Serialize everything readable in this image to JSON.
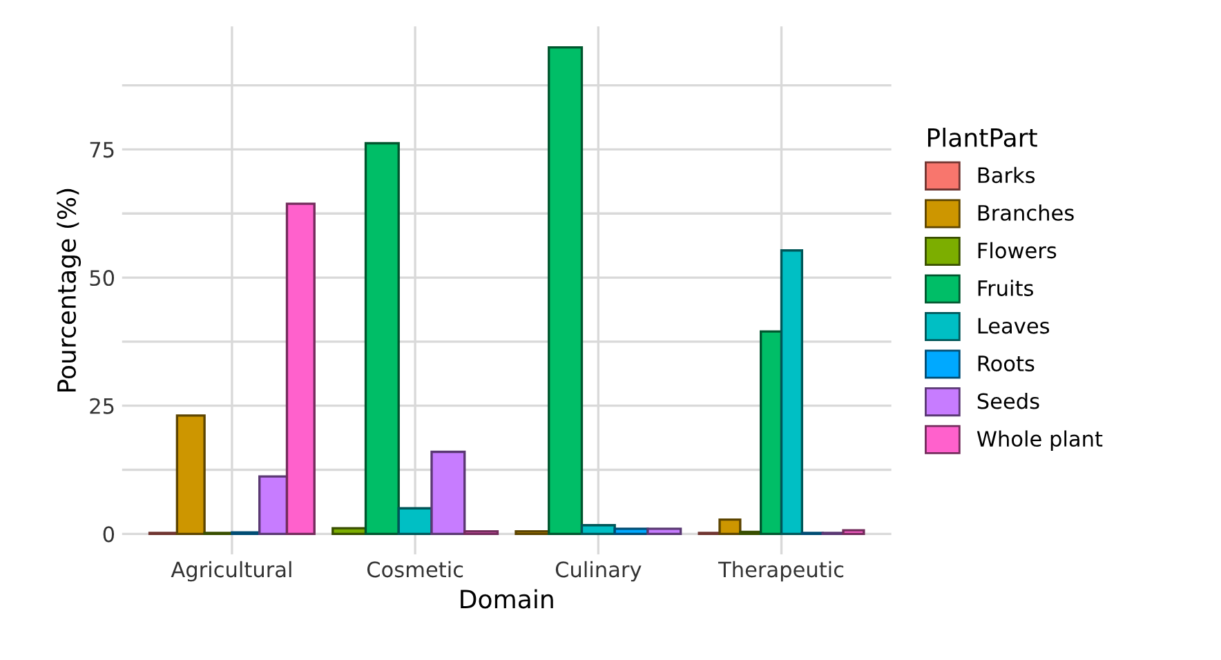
{
  "chart_data": {
    "type": "bar",
    "xlabel": "Domain",
    "ylabel": "Pourcentage (%)",
    "legend_title": "PlantPart",
    "categories": [
      "Agricultural",
      "Cosmetic",
      "Culinary",
      "Therapeutic"
    ],
    "series": [
      {
        "name": "Barks",
        "color": "#f8766d",
        "values": [
          0.2,
          null,
          null,
          0.2
        ]
      },
      {
        "name": "Branches",
        "color": "#cd9600",
        "values": [
          23.1,
          null,
          0.5,
          2.8
        ]
      },
      {
        "name": "Flowers",
        "color": "#7cae00",
        "values": [
          0.2,
          1.1,
          null,
          0.4
        ]
      },
      {
        "name": "Fruits",
        "color": "#00be67",
        "values": [
          null,
          76.2,
          94.9,
          39.5
        ]
      },
      {
        "name": "Leaves",
        "color": "#00bfc4",
        "values": [
          null,
          5.0,
          1.7,
          55.3
        ]
      },
      {
        "name": "Roots",
        "color": "#00a9ff",
        "values": [
          0.3,
          null,
          1.0,
          0.2
        ]
      },
      {
        "name": "Seeds",
        "color": "#c77cff",
        "values": [
          11.2,
          16.0,
          1.0,
          0.2
        ]
      },
      {
        "name": "Whole plant",
        "color": "#ff61cc",
        "values": [
          64.4,
          0.5,
          null,
          0.7
        ]
      }
    ],
    "ylim": [
      -4,
      99
    ],
    "yticks": [
      0,
      {
        "value": 12.5,
        "label": null
      },
      25,
      {
        "value": 37.5,
        "label": null
      },
      50,
      {
        "value": 62.5,
        "label": null
      },
      75,
      {
        "value": 87.5,
        "label": null
      }
    ],
    "grid": true,
    "legend": "right"
  }
}
